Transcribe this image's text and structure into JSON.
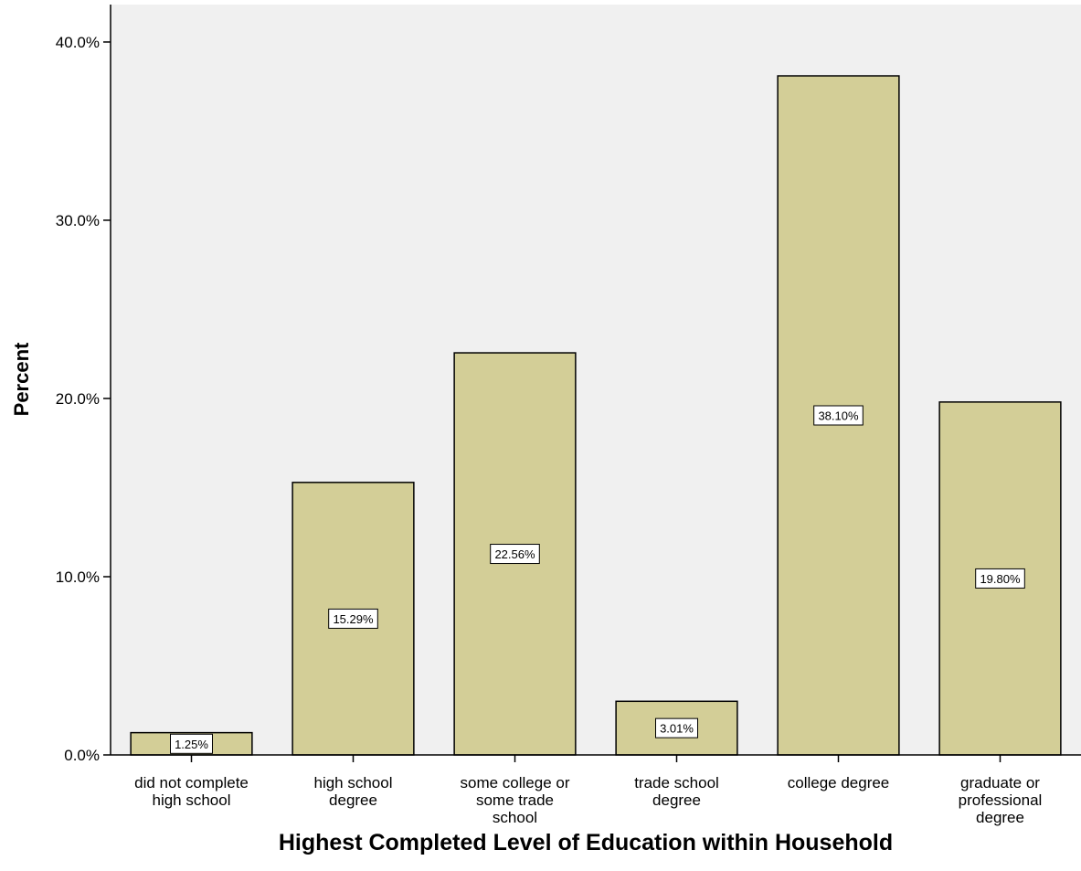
{
  "chart_data": {
    "type": "bar",
    "title": "",
    "xlabel": "Highest Completed Level of Education within Household",
    "ylabel": "Percent",
    "categories": [
      "did not complete\nhigh school",
      "high school\ndegree",
      "some college or\nsome trade\nschool",
      "trade school\ndegree",
      "college degree",
      "graduate or\nprofessional\ndegree"
    ],
    "values": [
      1.25,
      15.29,
      22.56,
      3.01,
      38.1,
      19.8
    ],
    "data_labels": [
      "1.25%",
      "15.29%",
      "22.56%",
      "3.01%",
      "38.10%",
      "19.80%"
    ],
    "y_ticks": [
      0,
      10,
      20,
      30,
      40
    ],
    "y_tick_labels": [
      "0.0%",
      "10.0%",
      "20.0%",
      "30.0%",
      "40.0%"
    ],
    "ylim": [
      0,
      42.1
    ],
    "grid": false,
    "colors": {
      "bar_fill": "#d3ce97",
      "bar_stroke": "#000000",
      "plot_background": "#f0f0f0",
      "label_background": "#ffffff"
    }
  }
}
